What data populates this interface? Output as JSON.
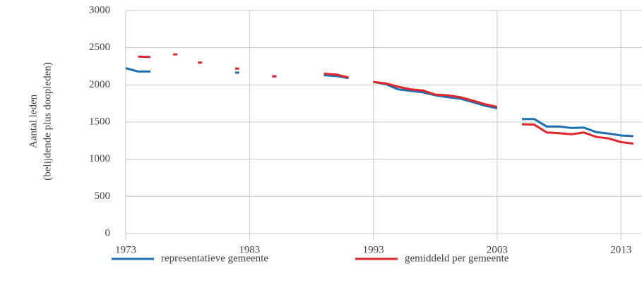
{
  "chart_data": {
    "type": "line",
    "y_label": [
      "Aantal leden",
      "(belijdende plus doopleden)"
    ],
    "x": [
      1973,
      1974,
      1975,
      1976,
      1977,
      1978,
      1979,
      1980,
      1981,
      1982,
      1983,
      1984,
      1985,
      1986,
      1987,
      1988,
      1989,
      1990,
      1991,
      1992,
      1993,
      1994,
      1995,
      1996,
      1997,
      1998,
      1999,
      2000,
      2001,
      2002,
      2003,
      2004,
      2005,
      2006,
      2007,
      2008,
      2009,
      2010,
      2011,
      2012,
      2013,
      2014
    ],
    "series": [
      {
        "name": "representatieve gemeente",
        "color": "#1f6fb2",
        "values": [
          2225,
          2180,
          2180,
          null,
          null,
          null,
          null,
          null,
          null,
          2165,
          null,
          null,
          2115,
          null,
          null,
          null,
          2130,
          2120,
          2090,
          null,
          2040,
          2010,
          1940,
          1920,
          1900,
          1860,
          1835,
          1815,
          1770,
          1720,
          1685,
          null,
          1540,
          1540,
          1440,
          1440,
          1420,
          1425,
          1365,
          1345,
          1320,
          1310
        ]
      },
      {
        "name": "gemiddeld per gemeente",
        "color": "#e3242b",
        "values": [
          null,
          2380,
          2375,
          null,
          2410,
          null,
          2300,
          null,
          null,
          2220,
          null,
          null,
          2115,
          null,
          null,
          null,
          2150,
          2140,
          2100,
          null,
          2040,
          2020,
          1975,
          1940,
          1925,
          1870,
          1860,
          1835,
          1790,
          1740,
          1705,
          null,
          1470,
          1465,
          1360,
          1350,
          1335,
          1360,
          1300,
          1280,
          1230,
          1210
        ]
      }
    ],
    "xlim": [
      1973,
      2014.7
    ],
    "xticks": [
      1973,
      1983,
      1993,
      2003,
      2013
    ],
    "ylim": [
      0,
      3000
    ],
    "yticks": [
      0,
      500,
      1000,
      1500,
      2000,
      2500,
      3000
    ],
    "grid": true,
    "legend": "bottom"
  }
}
